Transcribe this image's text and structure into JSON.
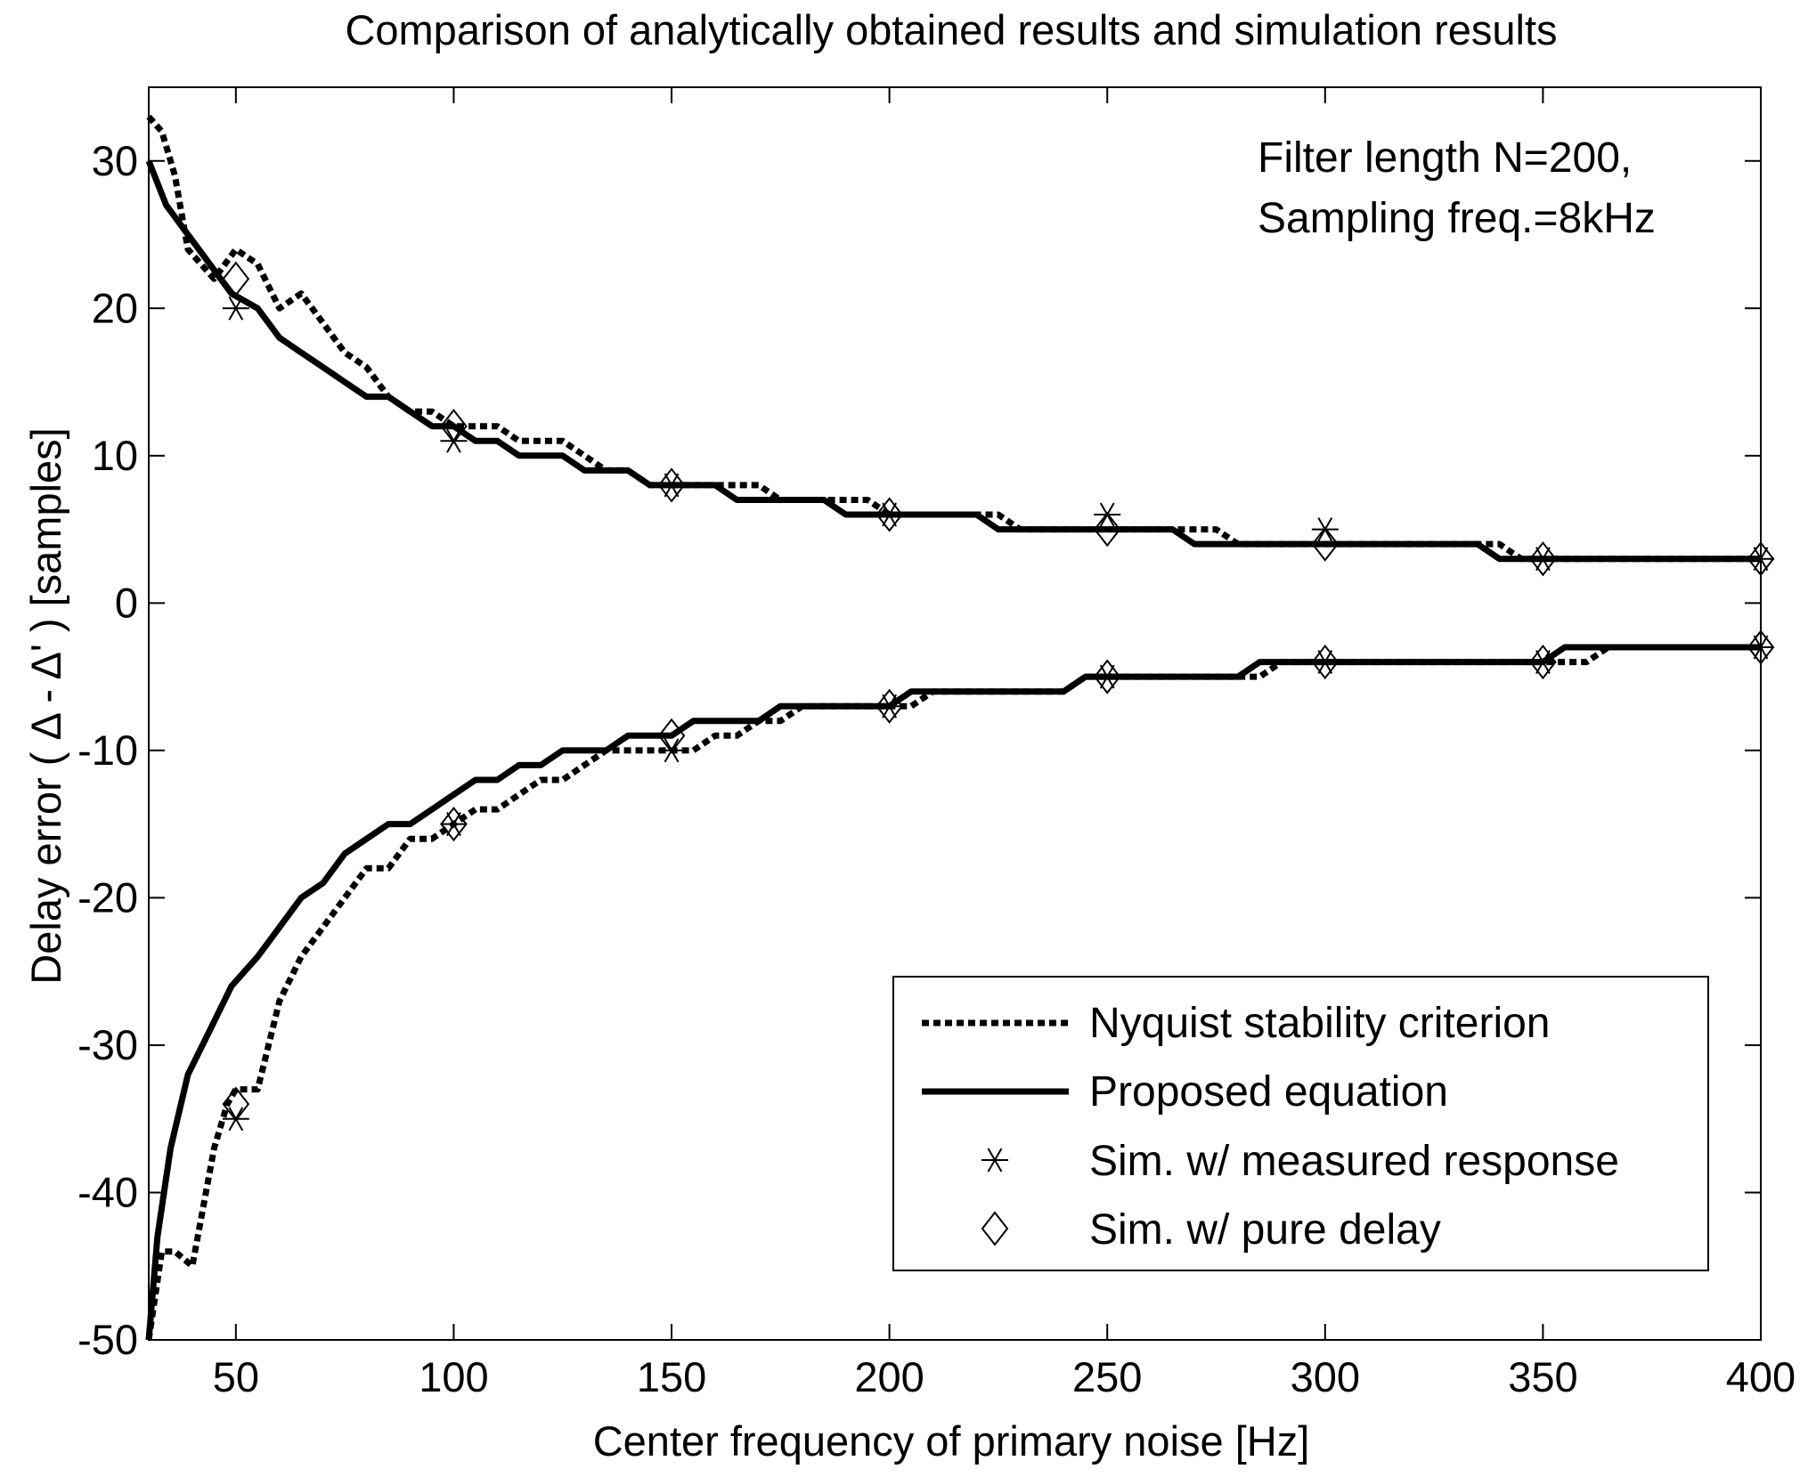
{
  "chart_data": {
    "type": "line",
    "title": "Comparison of analytically obtained results and simulation results",
    "xlabel": "Center frequency of primary noise [Hz]",
    "ylabel": "Delay error ( Δ - Δ' ) [samples]",
    "xlim": [
      30,
      400
    ],
    "ylim": [
      -50,
      35
    ],
    "xticks": [
      50,
      100,
      150,
      200,
      250,
      300,
      350,
      400
    ],
    "yticks": [
      -50,
      -40,
      -30,
      -20,
      -10,
      0,
      10,
      20,
      30
    ],
    "grid": false,
    "legend_position": "bottom-right",
    "annotation": [
      "Filter length N=200,",
      "Sampling freq.=8kHz"
    ],
    "series": [
      {
        "name": "Nyquist stability criterion",
        "style": "dotted",
        "segments": [
          {
            "x": [
              30,
              33,
              36,
              39,
              42,
              45,
              50,
              55,
              60,
              65,
              70,
              75,
              80,
              85,
              90,
              95,
              100,
              105,
              110,
              115,
              120,
              125,
              130,
              135,
              140,
              145,
              150,
              155,
              160,
              165,
              170,
              175,
              180,
              185,
              190,
              195,
              200,
              205,
              210,
              215,
              220,
              225,
              230,
              235,
              240,
              245,
              250,
              255,
              260,
              265,
              270,
              275,
              280,
              285,
              290,
              295,
              300,
              305,
              310,
              315,
              320,
              325,
              330,
              335,
              340,
              345,
              350,
              355,
              360,
              365,
              370,
              375,
              380,
              385,
              390,
              395,
              400
            ],
            "y": [
              33,
              32,
              29,
              24,
              23,
              22,
              24,
              23,
              20,
              21,
              19,
              17,
              16,
              14,
              13,
              13,
              12,
              12,
              12,
              11,
              11,
              11,
              10,
              9,
              9,
              8,
              8,
              8,
              8,
              8,
              8,
              7,
              7,
              7,
              7,
              7,
              6,
              6,
              6,
              6,
              6,
              6,
              5,
              5,
              5,
              5,
              5,
              5,
              5,
              5,
              5,
              5,
              4,
              4,
              4,
              4,
              4,
              4,
              4,
              4,
              4,
              4,
              4,
              4,
              4,
              3,
              3,
              3,
              3,
              3,
              3,
              3,
              3,
              3,
              3,
              3,
              3
            ]
          },
          {
            "x": [
              30,
              33,
              36,
              40,
              45,
              48,
              50,
              55,
              60,
              65,
              70,
              75,
              80,
              85,
              90,
              95,
              100,
              105,
              110,
              115,
              120,
              125,
              130,
              135,
              140,
              145,
              150,
              155,
              160,
              165,
              170,
              175,
              180,
              185,
              190,
              195,
              200,
              205,
              210,
              215,
              220,
              225,
              230,
              235,
              240,
              245,
              250,
              255,
              260,
              265,
              270,
              275,
              280,
              285,
              290,
              295,
              300,
              305,
              310,
              315,
              320,
              325,
              330,
              335,
              340,
              345,
              350,
              355,
              360,
              365,
              370,
              375,
              380,
              385,
              390,
              395,
              400
            ],
            "y": [
              -50,
              -44,
              -44,
              -45,
              -37,
              -34,
              -33,
              -33,
              -27,
              -24,
              -22,
              -20,
              -18,
              -18,
              -16,
              -16,
              -15,
              -14,
              -14,
              -13,
              -12,
              -12,
              -11,
              -10,
              -10,
              -10,
              -10,
              -10,
              -9,
              -9,
              -8,
              -8,
              -7,
              -7,
              -7,
              -7,
              -7,
              -7,
              -6,
              -6,
              -6,
              -6,
              -6,
              -6,
              -6,
              -5,
              -5,
              -5,
              -5,
              -5,
              -5,
              -5,
              -5,
              -5,
              -4,
              -4,
              -4,
              -4,
              -4,
              -4,
              -4,
              -4,
              -4,
              -4,
              -4,
              -4,
              -4,
              -4,
              -4,
              -3,
              -3,
              -3,
              -3,
              -3,
              -3,
              -3,
              -3
            ]
          }
        ]
      },
      {
        "name": "Proposed equation",
        "style": "solid",
        "segments": [
          {
            "x": [
              30,
              34,
              39,
              44,
              49,
              55,
              60,
              65,
              70,
              75,
              80,
              85,
              90,
              95,
              100,
              105,
              110,
              115,
              120,
              125,
              130,
              135,
              140,
              145,
              150,
              155,
              160,
              165,
              170,
              175,
              180,
              185,
              190,
              195,
              200,
              205,
              210,
              215,
              220,
              225,
              230,
              235,
              240,
              245,
              250,
              255,
              260,
              265,
              270,
              275,
              280,
              285,
              290,
              295,
              300,
              305,
              310,
              315,
              320,
              325,
              330,
              335,
              340,
              345,
              350,
              355,
              360,
              365,
              370,
              375,
              380,
              385,
              390,
              395,
              400
            ],
            "y": [
              30,
              27,
              25,
              23,
              21,
              20,
              18,
              17,
              16,
              15,
              14,
              14,
              13,
              12,
              12,
              11,
              11,
              10,
              10,
              10,
              9,
              9,
              9,
              8,
              8,
              8,
              8,
              7,
              7,
              7,
              7,
              7,
              6,
              6,
              6,
              6,
              6,
              6,
              6,
              5,
              5,
              5,
              5,
              5,
              5,
              5,
              5,
              5,
              4,
              4,
              4,
              4,
              4,
              4,
              4,
              4,
              4,
              4,
              4,
              4,
              4,
              4,
              3,
              3,
              3,
              3,
              3,
              3,
              3,
              3,
              3,
              3,
              3,
              3,
              3
            ]
          },
          {
            "x": [
              30,
              32,
              35,
              39,
              44,
              49,
              55,
              60,
              65,
              70,
              75,
              80,
              85,
              90,
              95,
              100,
              105,
              110,
              115,
              120,
              125,
              130,
              135,
              140,
              145,
              150,
              155,
              160,
              165,
              170,
              175,
              180,
              185,
              190,
              195,
              200,
              205,
              210,
              215,
              220,
              225,
              230,
              235,
              240,
              245,
              250,
              255,
              260,
              265,
              270,
              275,
              280,
              285,
              290,
              295,
              300,
              305,
              310,
              315,
              320,
              325,
              330,
              335,
              340,
              345,
              350,
              355,
              360,
              365,
              370,
              375,
              380,
              385,
              390,
              395,
              400
            ],
            "y": [
              -50,
              -43,
              -37,
              -32,
              -29,
              -26,
              -24,
              -22,
              -20,
              -19,
              -17,
              -16,
              -15,
              -15,
              -14,
              -13,
              -12,
              -12,
              -11,
              -11,
              -10,
              -10,
              -10,
              -9,
              -9,
              -9,
              -8,
              -8,
              -8,
              -8,
              -7,
              -7,
              -7,
              -7,
              -7,
              -7,
              -6,
              -6,
              -6,
              -6,
              -6,
              -6,
              -6,
              -6,
              -5,
              -5,
              -5,
              -5,
              -5,
              -5,
              -5,
              -5,
              -4,
              -4,
              -4,
              -4,
              -4,
              -4,
              -4,
              -4,
              -4,
              -4,
              -4,
              -4,
              -4,
              -4,
              -3,
              -3,
              -3,
              -3,
              -3,
              -3,
              -3,
              -3,
              -3,
              -3
            ]
          }
        ]
      },
      {
        "name": "Sim. w/ measured response",
        "style": "marker-star",
        "x": [
          50,
          100,
          150,
          200,
          250,
          300,
          350,
          400,
          50,
          100,
          150,
          200,
          250,
          300,
          350,
          400
        ],
        "y": [
          20,
          11,
          8,
          6,
          6,
          5,
          3,
          3,
          -35,
          -15,
          -10,
          -7,
          -5,
          -4,
          -4,
          -3
        ]
      },
      {
        "name": "Sim. w/ pure delay",
        "style": "marker-diamond",
        "x": [
          50,
          100,
          150,
          200,
          250,
          300,
          350,
          400,
          50,
          100,
          150,
          200,
          250,
          300,
          350,
          400
        ],
        "y": [
          22,
          12,
          8,
          6,
          5,
          4,
          3,
          3,
          -34,
          -15,
          -9,
          -7,
          -5,
          -4,
          -4,
          -3
        ]
      }
    ]
  }
}
